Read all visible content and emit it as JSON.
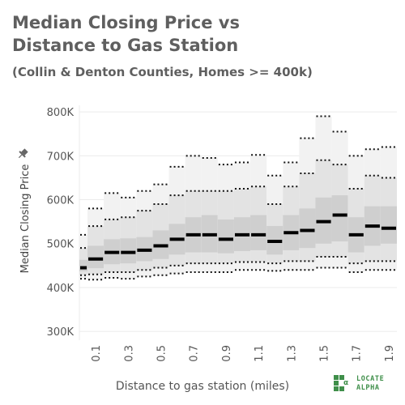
{
  "title": "Median Closing Price vs Distance to Gas Station",
  "subtitle": "(Collin & Denton Counties, Homes >= 400k)",
  "pin_icon": "pin-icon",
  "brand": {
    "line1": "LOCATE",
    "line2": "ALPHA",
    "color": "#3f8f4a",
    "icon": "locate-alpha-logo-icon"
  },
  "colors": {
    "outer_band": "#f2f2f2",
    "mid_band": "#e3e3e3",
    "inner_band": "#cfcfcf",
    "median": "#000000",
    "text": "#5f5f5f",
    "grid": "#ebebeb"
  },
  "chart_data": {
    "type": "box",
    "title": "Median Closing Price vs Distance to Gas Station",
    "subtitle": "(Collin & Denton Counties, Homes >= 400k)",
    "xlabel": "Distance to gas station (miles)",
    "ylabel": "Median Closing Price",
    "y_ticks": [
      "300K",
      "400K",
      "500K",
      "600K",
      "700K",
      "800K"
    ],
    "y_tick_values": [
      300000,
      400000,
      500000,
      600000,
      700000,
      800000
    ],
    "ylim": [
      280000,
      815000
    ],
    "x_tick_labels": [
      "0.1",
      "0.3",
      "0.5",
      "0.7",
      "0.9",
      "1.1",
      "1.3",
      "1.5",
      "1.7",
      "1.9"
    ],
    "x_tick_values": [
      0.1,
      0.3,
      0.5,
      0.7,
      0.9,
      1.1,
      1.3,
      1.5,
      1.7,
      1.9
    ],
    "xlim": [
      0.0,
      1.95
    ],
    "grid": true,
    "bins": [
      {
        "x": 0.0,
        "p5": 420000,
        "p10": 428000,
        "p25": 437000,
        "median": 445000,
        "p75": 463000,
        "p90": 490000,
        "p95": 520000
      },
      {
        "x": 0.1,
        "p5": 418000,
        "p10": 430000,
        "p25": 444000,
        "median": 465000,
        "p75": 495000,
        "p90": 540000,
        "p95": 580000
      },
      {
        "x": 0.2,
        "p5": 422000,
        "p10": 435000,
        "p25": 453000,
        "median": 480000,
        "p75": 510000,
        "p90": 555000,
        "p95": 615000
      },
      {
        "x": 0.3,
        "p5": 420000,
        "p10": 435000,
        "p25": 455000,
        "median": 480000,
        "p75": 512000,
        "p90": 560000,
        "p95": 605000
      },
      {
        "x": 0.4,
        "p5": 425000,
        "p10": 440000,
        "p25": 460000,
        "median": 485000,
        "p75": 515000,
        "p90": 575000,
        "p95": 620000
      },
      {
        "x": 0.5,
        "p5": 428000,
        "p10": 445000,
        "p25": 465000,
        "median": 495000,
        "p75": 530000,
        "p90": 590000,
        "p95": 635000
      },
      {
        "x": 0.6,
        "p5": 432000,
        "p10": 450000,
        "p25": 475000,
        "median": 510000,
        "p75": 545000,
        "p90": 610000,
        "p95": 675000
      },
      {
        "x": 0.7,
        "p5": 435000,
        "p10": 455000,
        "p25": 480000,
        "median": 520000,
        "p75": 560000,
        "p90": 620000,
        "p95": 700000
      },
      {
        "x": 0.8,
        "p5": 435000,
        "p10": 455000,
        "p25": 480000,
        "median": 520000,
        "p75": 565000,
        "p90": 620000,
        "p95": 695000
      },
      {
        "x": 0.9,
        "p5": 435000,
        "p10": 455000,
        "p25": 478000,
        "median": 510000,
        "p75": 555000,
        "p90": 620000,
        "p95": 680000
      },
      {
        "x": 1.0,
        "p5": 440000,
        "p10": 458000,
        "p25": 483000,
        "median": 520000,
        "p75": 560000,
        "p90": 625000,
        "p95": 685000
      },
      {
        "x": 1.1,
        "p5": 440000,
        "p10": 458000,
        "p25": 485000,
        "median": 520000,
        "p75": 565000,
        "p90": 630000,
        "p95": 702000
      },
      {
        "x": 1.2,
        "p5": 438000,
        "p10": 455000,
        "p25": 475000,
        "median": 505000,
        "p75": 540000,
        "p90": 590000,
        "p95": 655000
      },
      {
        "x": 1.3,
        "p5": 440000,
        "p10": 460000,
        "p25": 485000,
        "median": 525000,
        "p75": 565000,
        "p90": 630000,
        "p95": 685000
      },
      {
        "x": 1.4,
        "p5": 440000,
        "p10": 460000,
        "p25": 490000,
        "median": 530000,
        "p75": 580000,
        "p90": 660000,
        "p95": 740000
      },
      {
        "x": 1.5,
        "p5": 445000,
        "p10": 470000,
        "p25": 500000,
        "median": 550000,
        "p75": 605000,
        "p90": 690000,
        "p95": 790000
      },
      {
        "x": 1.6,
        "p5": 445000,
        "p10": 470000,
        "p25": 505000,
        "median": 565000,
        "p75": 610000,
        "p90": 680000,
        "p95": 755000
      },
      {
        "x": 1.7,
        "p5": 435000,
        "p10": 455000,
        "p25": 480000,
        "median": 520000,
        "p75": 560000,
        "p90": 625000,
        "p95": 700000
      },
      {
        "x": 1.8,
        "p5": 440000,
        "p10": 460000,
        "p25": 495000,
        "median": 540000,
        "p75": 585000,
        "p90": 655000,
        "p95": 715000
      },
      {
        "x": 1.9,
        "p5": 440000,
        "p10": 460000,
        "p25": 500000,
        "median": 535000,
        "p75": 585000,
        "p90": 650000,
        "p95": 720000
      }
    ]
  }
}
